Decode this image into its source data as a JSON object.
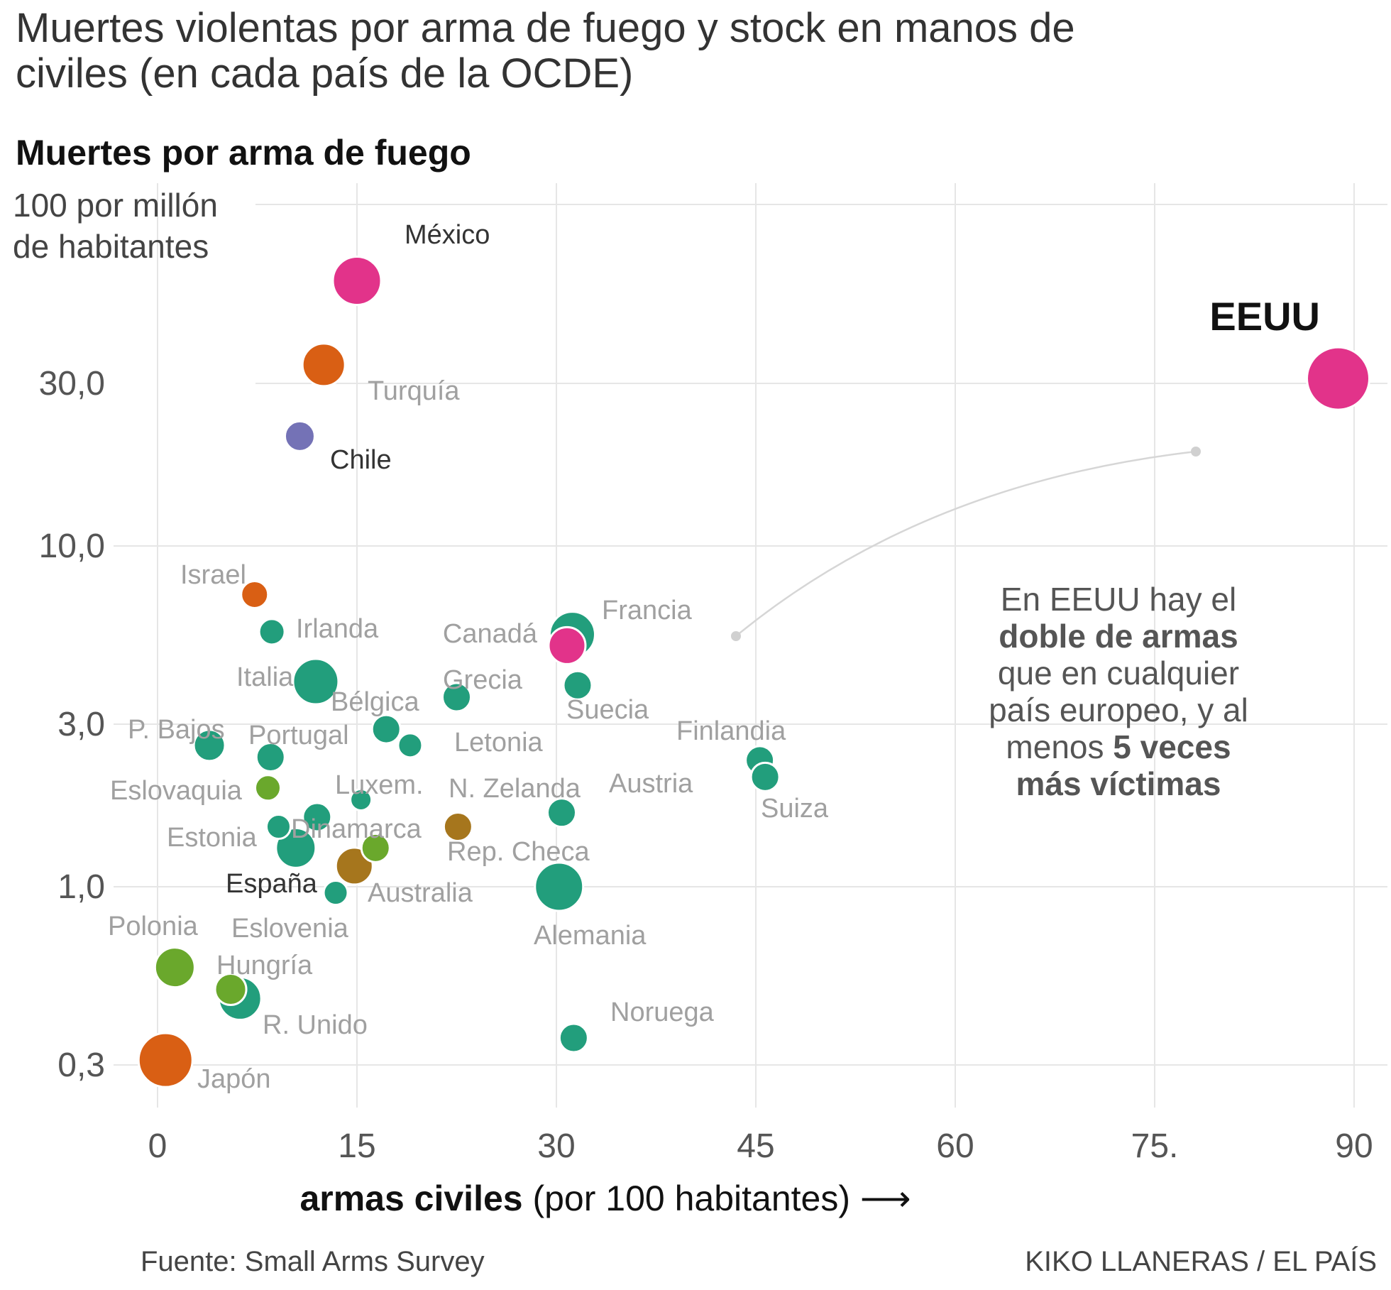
{
  "title": "Muertes violentas por arma de fuego y stock en manos de civiles (en cada país de la OCDE)",
  "source": "Fuente: Small Arms Survey",
  "credit": "KIKO LLANERAS / EL PAÍS",
  "colors": {
    "green": "#229e7c",
    "lightgreen": "#6aa82c",
    "orange": "#d95f14",
    "pink": "#e2338a",
    "purple": "#7472b6",
    "brown": "#a6761d",
    "grid": "#e6e6e6",
    "label": "#a0a0a0",
    "labelDark": "#333333"
  },
  "chart_data": {
    "type": "scatter",
    "title": "Muertes violentas por arma de fuego y stock en manos de civiles (en cada país de la OCDE)",
    "ylabel": "Muertes por arma de fuego",
    "ylabel_unit": "100 por millón de habitantes",
    "xlabel_bold": "armas civiles",
    "xlabel_rest": " (por 100 habitantes) ⟶",
    "y_scale": "log",
    "xlim": [
      0,
      90
    ],
    "ylim": [
      0.3,
      100
    ],
    "x_ticks": [
      0,
      15,
      30,
      45,
      60,
      75,
      90
    ],
    "x_tick_labels": [
      "0",
      "15",
      "30",
      "45",
      "60",
      "75.",
      "90"
    ],
    "y_ticks": [
      0.3,
      1,
      3,
      10,
      30
    ],
    "y_tick_labels": [
      "0,3",
      "1,0",
      "3,0",
      "10,0",
      "30,0"
    ],
    "grid": true,
    "annotation": {
      "lines": [
        [
          {
            "t": "En EEUU hay el",
            "b": false
          }
        ],
        [
          {
            "t": "doble de armas",
            "b": true
          }
        ],
        [
          {
            "t": "que en cualquier",
            "b": false
          }
        ],
        [
          {
            "t": "país europeo, y al",
            "b": false
          }
        ],
        [
          {
            "t": "menos ",
            "b": false
          },
          {
            "t": "5 veces",
            "b": true
          }
        ],
        [
          {
            "t": "más víctimas",
            "b": true
          }
        ]
      ]
    },
    "points": [
      {
        "name": "México",
        "x": 15,
        "y": 60,
        "size": 34,
        "color": "pink",
        "label_style": "dark"
      },
      {
        "name": "EEUU",
        "x": 88.8,
        "y": 31,
        "size": 44,
        "color": "pink",
        "label_style": "bold"
      },
      {
        "name": "Turquía",
        "x": 12.5,
        "y": 34,
        "size": 30,
        "color": "orange",
        "label_style": "light"
      },
      {
        "name": "Chile",
        "x": 10.7,
        "y": 21,
        "size": 21,
        "color": "purple",
        "label_style": "dark"
      },
      {
        "name": "Israel",
        "x": 7.3,
        "y": 7.2,
        "size": 19,
        "color": "orange",
        "label_style": "light"
      },
      {
        "name": "Irlanda",
        "x": 8.6,
        "y": 5.6,
        "size": 18,
        "color": "green",
        "label_style": "light"
      },
      {
        "name": "Francia",
        "x": 31.2,
        "y": 5.5,
        "size": 32,
        "color": "green",
        "label_style": "light"
      },
      {
        "name": "Canadá",
        "x": 30.8,
        "y": 5.1,
        "size": 26,
        "color": "pink",
        "label_style": "light"
      },
      {
        "name": "Italia",
        "x": 11.9,
        "y": 4.0,
        "size": 32,
        "color": "green",
        "label_style": "light"
      },
      {
        "name": "Suecia",
        "x": 31.6,
        "y": 3.9,
        "size": 20,
        "color": "green",
        "label_style": "light"
      },
      {
        "name": "Grecia",
        "x": 22.5,
        "y": 3.6,
        "size": 20,
        "color": "green",
        "label_style": "light"
      },
      {
        "name": "Bélgica",
        "x": 17.2,
        "y": 2.9,
        "size": 20,
        "color": "green",
        "label_style": "light"
      },
      {
        "name": "P. Bajos",
        "x": 3.9,
        "y": 2.6,
        "size": 22,
        "color": "green",
        "label_style": "light"
      },
      {
        "name": "Letonia",
        "x": 19,
        "y": 2.6,
        "size": 17,
        "color": "green",
        "label_style": "light"
      },
      {
        "name": "Portugal",
        "x": 8.5,
        "y": 2.4,
        "size": 20,
        "color": "green",
        "label_style": "light"
      },
      {
        "name": "Finlandia",
        "x": 45.3,
        "y": 2.35,
        "size": 20,
        "color": "green",
        "label_style": "light"
      },
      {
        "name": "Suiza",
        "x": 45.7,
        "y": 2.1,
        "size": 20,
        "color": "green",
        "label_style": "light"
      },
      {
        "name": "Eslovaquia",
        "x": 8.3,
        "y": 1.95,
        "size": 18,
        "color": "lightgreen",
        "label_style": "light"
      },
      {
        "name": "Luxem.",
        "x": 15.3,
        "y": 1.8,
        "size": 15,
        "color": "green",
        "label_style": "light"
      },
      {
        "name": "Austria",
        "x": 30.4,
        "y": 1.65,
        "size": 20,
        "color": "green",
        "label_style": "light"
      },
      {
        "name": "N. Zelanda",
        "x": 12,
        "y": 1.6,
        "size": 20,
        "color": "green",
        "label_style": "light"
      },
      {
        "name": "Dinamarca",
        "x": 9.1,
        "y": 1.5,
        "size": 17,
        "color": "green",
        "label_style": "light"
      },
      {
        "name": "Rep. Checa",
        "x": 22.6,
        "y": 1.5,
        "size": 20,
        "color": "brown",
        "label_style": "light"
      },
      {
        "name": "Estonia",
        "x": 10.4,
        "y": 1.3,
        "size": 28,
        "color": "green",
        "label_style": "light"
      },
      {
        "name": "Australia",
        "x": 16.4,
        "y": 1.3,
        "size": 20,
        "color": "lightgreen",
        "label_style": "light"
      },
      {
        "name": "España",
        "x": 14.8,
        "y": 1.15,
        "size": 26,
        "color": "brown",
        "label_style": "dark"
      },
      {
        "name": "Alemania",
        "x": 30.2,
        "y": 1.0,
        "size": 34,
        "color": "green",
        "label_style": "light"
      },
      {
        "name": "Eslovenia",
        "x": 13.4,
        "y": 0.96,
        "size": 17,
        "color": "green",
        "label_style": "light"
      },
      {
        "name": "Polonia",
        "x": 1.3,
        "y": 0.58,
        "size": 28,
        "color": "lightgreen",
        "label_style": "light"
      },
      {
        "name": "Hungría",
        "x": 5.5,
        "y": 0.5,
        "size": 22,
        "color": "lightgreen",
        "label_style": "light"
      },
      {
        "name": "R. Unido",
        "x": 6.2,
        "y": 0.47,
        "size": 30,
        "color": "green",
        "label_style": "light"
      },
      {
        "name": "Noruega",
        "x": 31.3,
        "y": 0.36,
        "size": 20,
        "color": "green",
        "label_style": "light"
      },
      {
        "name": "Japón",
        "x": 0.6,
        "y": 0.31,
        "size": 38,
        "color": "orange",
        "label_style": "light"
      }
    ]
  }
}
